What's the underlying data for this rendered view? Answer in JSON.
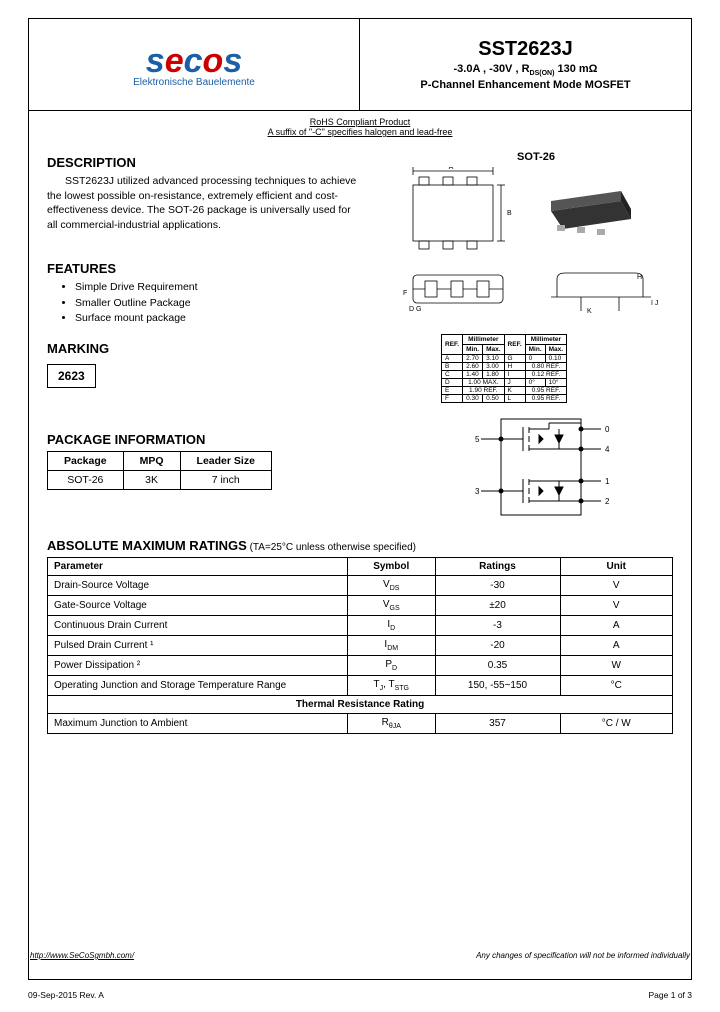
{
  "header": {
    "logo_subtitle": "Elektronische Bauelemente",
    "part_number": "SST2623J",
    "spec_line": "-3.0A , -30V , RDS(ON) 130 mΩ",
    "desc_line": "P-Channel Enhancement Mode MOSFET"
  },
  "rohs": {
    "line1": "RoHS Compliant Product",
    "line2": "A suffix of \"-C\" specifies halogen and lead-free"
  },
  "description": {
    "title": "DESCRIPTION",
    "text": "SST2623J utilized advanced processing techniques to achieve the lowest possible on-resistance, extremely efficient and cost-effectiveness device. The SOT-26 package is universally used for all commercial-industrial applications."
  },
  "features": {
    "title": "FEATURES",
    "items": [
      "Simple Drive Requirement",
      "Smaller Outline Package",
      "Surface mount package"
    ]
  },
  "marking": {
    "title": "MARKING",
    "value": "2623"
  },
  "package_info": {
    "title": "PACKAGE INFORMATION",
    "columns": [
      "Package",
      "MPQ",
      "Leader Size"
    ],
    "row": [
      "SOT-26",
      "3K",
      "7 inch"
    ]
  },
  "package_label": "SOT-26",
  "dim_table": {
    "header": [
      "REF.",
      "Min.",
      "Max.",
      "REF.",
      "Min.",
      "Max."
    ],
    "header_top": [
      "",
      "Millimeter",
      "",
      "Millimeter"
    ],
    "rows": [
      [
        "A",
        "2.70",
        "3.10",
        "G",
        "0",
        "0.10"
      ],
      [
        "B",
        "2.60",
        "3.00",
        "H",
        "0.80 REF.",
        ""
      ],
      [
        "C",
        "1.40",
        "1.80",
        "I",
        "0.12 REF.",
        ""
      ],
      [
        "D",
        "1.00 MAX.",
        "",
        "J",
        "0°",
        "10°"
      ],
      [
        "E",
        "1.90 REF.",
        "",
        "K",
        "0.95 REF.",
        ""
      ],
      [
        "F",
        "0.30",
        "0.50",
        "L",
        "0.95 REF.",
        ""
      ]
    ]
  },
  "ratings": {
    "title": "ABSOLUTE MAXIMUM RATINGS",
    "condition": " (TA=25°C unless otherwise specified)",
    "columns": [
      "Parameter",
      "Symbol",
      "Ratings",
      "Unit"
    ],
    "rows": [
      {
        "param": "Drain-Source Voltage",
        "symbol": "VDS",
        "rating": "-30",
        "unit": "V"
      },
      {
        "param": "Gate-Source Voltage",
        "symbol": "VGS",
        "rating": "±20",
        "unit": "V"
      },
      {
        "param": "Continuous Drain Current",
        "symbol": "ID",
        "rating": "-3",
        "unit": "A"
      },
      {
        "param": "Pulsed Drain Current ¹",
        "symbol": "IDM",
        "rating": "-20",
        "unit": "A"
      },
      {
        "param": "Power Dissipation ²",
        "symbol": "PD",
        "rating": "0.35",
        "unit": "W"
      },
      {
        "param": "Operating Junction and Storage Temperature Range",
        "symbol": "TJ, TSTG",
        "rating": "150, -55~150",
        "unit": "°C"
      }
    ],
    "thermal_title": "Thermal Resistance Rating",
    "thermal_row": {
      "param": "Maximum Junction to Ambient",
      "symbol": "RθJA",
      "rating": "357",
      "unit": "°C / W"
    }
  },
  "footer": {
    "url": "http://www.SeCoSgmbh.com/",
    "note": "Any changes of specification will not be informed individually",
    "rev": "09-Sep-2015 Rev. A",
    "page": "Page 1 of 3"
  },
  "colors": {
    "blue": "#1a5fa8",
    "red": "#c00",
    "black": "#000"
  }
}
